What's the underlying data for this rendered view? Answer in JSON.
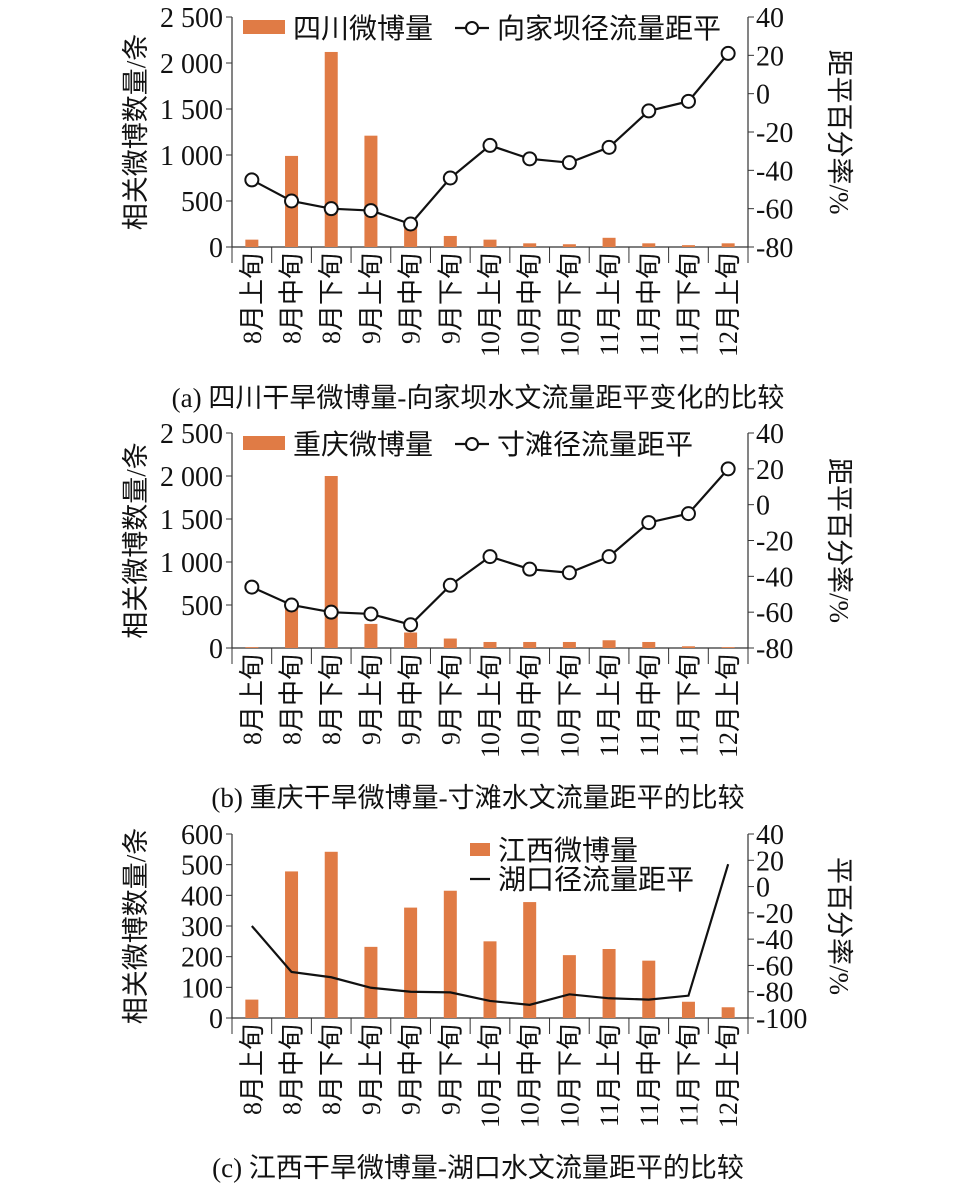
{
  "colors": {
    "bar": "#e07b45",
    "line": "#111111"
  },
  "chart_data": [
    {
      "type": "bar+line",
      "caption": "(a) 四川干旱微博量-向家坝水文流量距平变化的比较",
      "categories": [
        "8月上旬",
        "8月中旬",
        "8月下旬",
        "9月上旬",
        "9月中旬",
        "9月下旬",
        "10月上旬",
        "10月中旬",
        "10月下旬",
        "11月上旬",
        "11月中旬",
        "11月下旬",
        "12月上旬"
      ],
      "ylabel": "相关微博数量/条",
      "y2label": "距平百分率/%",
      "ylim": [
        0,
        2500
      ],
      "yticks": [
        0,
        500,
        1000,
        1500,
        2000,
        2500
      ],
      "ytick_labels": [
        "0",
        "500",
        "1 000",
        "1 500",
        "2 000",
        "2 500"
      ],
      "y2lim": [
        -80,
        40
      ],
      "y2ticks": [
        -80,
        -60,
        -40,
        -20,
        0,
        20,
        40
      ],
      "legend_position": "top",
      "series": [
        {
          "name": "四川微博量",
          "kind": "bar",
          "axis": "left",
          "values": [
            80,
            990,
            2120,
            1210,
            270,
            120,
            80,
            40,
            30,
            100,
            40,
            20,
            40
          ]
        },
        {
          "name": "向家坝径流量距平",
          "kind": "line-marker",
          "axis": "right",
          "values": [
            -45,
            -56,
            -60,
            -61,
            -68,
            -44,
            -27,
            -34,
            -36,
            -28,
            -9,
            -4,
            21
          ]
        }
      ]
    },
    {
      "type": "bar+line",
      "caption": "(b) 重庆干旱微博量-寸滩水文流量距平的比较",
      "categories": [
        "8月上旬",
        "8月中旬",
        "8月下旬",
        "9月上旬",
        "9月中旬",
        "9月下旬",
        "10月上旬",
        "10月中旬",
        "10月下旬",
        "11月上旬",
        "11月中旬",
        "11月下旬",
        "12月上旬"
      ],
      "ylabel": "相关微博数量/条",
      "y2label": "距平百分率/%",
      "ylim": [
        0,
        2500
      ],
      "yticks": [
        0,
        500,
        1000,
        1500,
        2000,
        2500
      ],
      "ytick_labels": [
        "0",
        "500",
        "1 000",
        "1 500",
        "2 000",
        "2 500"
      ],
      "y2lim": [
        -80,
        40
      ],
      "y2ticks": [
        -80,
        -60,
        -40,
        -20,
        0,
        20,
        40
      ],
      "legend_position": "top",
      "series": [
        {
          "name": "重庆微博量",
          "kind": "bar",
          "axis": "left",
          "values": [
            10,
            460,
            2000,
            280,
            180,
            110,
            70,
            70,
            70,
            90,
            70,
            20,
            10
          ]
        },
        {
          "name": "寸滩径流量距平",
          "kind": "line-marker",
          "axis": "right",
          "values": [
            -46,
            -56,
            -60,
            -61,
            -67,
            -45,
            -29,
            -36,
            -38,
            -29,
            -10,
            -5,
            20
          ]
        }
      ]
    },
    {
      "type": "bar+line",
      "caption": "(c) 江西干旱微博量-湖口水文流量距平的比较",
      "categories": [
        "8月上旬",
        "8月中旬",
        "8月下旬",
        "9月上旬",
        "9月中旬",
        "9月下旬",
        "10月上旬",
        "10月中旬",
        "10月下旬",
        "11月上旬",
        "11月中旬",
        "11月下旬",
        "12月上旬"
      ],
      "ylabel": "相关微博数量/条",
      "y2label": "平百分率/%",
      "ylim": [
        0,
        600
      ],
      "yticks": [
        0,
        100,
        200,
        300,
        400,
        500,
        600
      ],
      "ytick_labels": [
        "0",
        "100",
        "200",
        "300",
        "400",
        "500",
        "600"
      ],
      "y2lim": [
        -100,
        40
      ],
      "y2ticks": [
        -100,
        -80,
        -60,
        -40,
        -20,
        0,
        20,
        40
      ],
      "legend_position": "top-center",
      "series": [
        {
          "name": "江西微博量",
          "kind": "bar",
          "axis": "left",
          "values": [
            60,
            478,
            542,
            232,
            360,
            415,
            250,
            378,
            205,
            225,
            187,
            53,
            35
          ]
        },
        {
          "name": "湖口径流量距平",
          "kind": "line",
          "axis": "right",
          "values": [
            -30,
            -65,
            -69,
            -77,
            -80,
            -80.5,
            -87,
            -90,
            -82,
            -85,
            -86,
            -83,
            17
          ]
        }
      ]
    }
  ]
}
